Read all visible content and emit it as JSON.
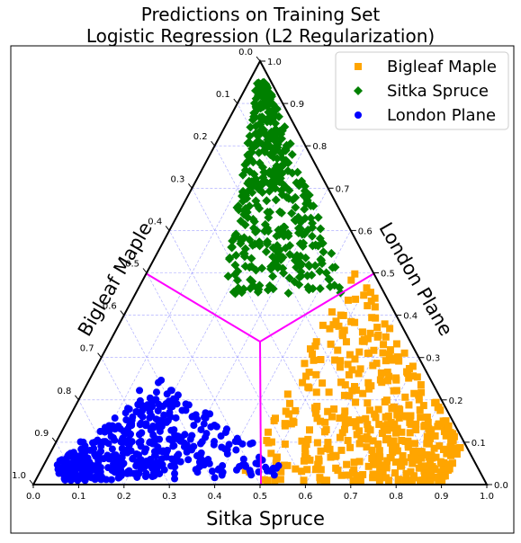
{
  "title": {
    "line1": "Predictions on Training Set",
    "line2": "Logistic Regression (L2 Regularization)"
  },
  "chart_data": {
    "type": "scatter",
    "subtype": "ternary",
    "axes": {
      "bottom": "Sitka Spruce",
      "left": "Bigleaf Maple",
      "right": "London Plane"
    },
    "ticks": [
      "0.0",
      "0.1",
      "0.2",
      "0.3",
      "0.4",
      "0.5",
      "0.6",
      "0.7",
      "0.8",
      "0.9",
      "1.0"
    ],
    "tick_values": [
      0,
      0.1,
      0.2,
      0.3,
      0.4,
      0.5,
      0.6,
      0.7,
      0.8,
      0.9,
      1.0
    ],
    "grid": true,
    "legend_position": "top-right",
    "colors": {
      "frame": "#000000",
      "grid": "#8a8aff",
      "boundary": "#ff00ff",
      "bigleaf_maple": "#ffa500",
      "sitka_spruce": "#008000",
      "london_plane": "#0000ff"
    },
    "decision_boundary": {
      "center": [
        0.333,
        0.333,
        0.333
      ],
      "ends": [
        [
          0.5,
          0.5,
          0
        ],
        [
          0.5,
          0,
          0.5
        ],
        [
          0,
          0.5,
          0.5
        ]
      ]
    },
    "series": [
      {
        "name": "Bigleaf Maple",
        "marker": "square",
        "color": "#ffa500",
        "region": "right",
        "approx_points": 450
      },
      {
        "name": "Sitka Spruce",
        "marker": "diamond",
        "color": "#008000",
        "region": "top",
        "approx_points": 430
      },
      {
        "name": "London Plane",
        "marker": "circle",
        "color": "#0000ff",
        "region": "left",
        "approx_points": 460
      }
    ]
  }
}
